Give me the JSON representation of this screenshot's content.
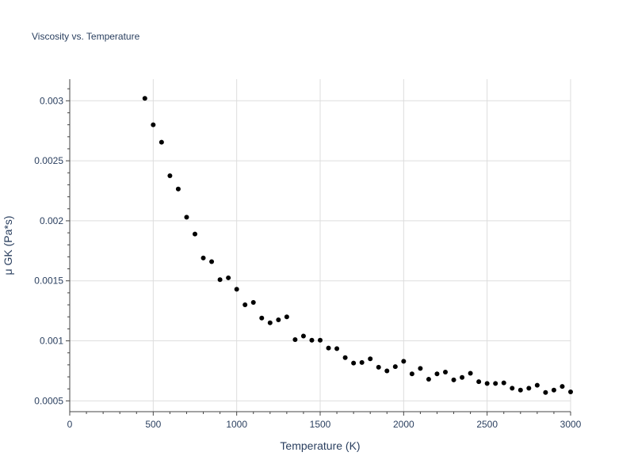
{
  "chart_data": {
    "type": "scatter",
    "title": "Viscosity vs. Temperature",
    "xlabel": "Temperature (K)",
    "ylabel": "μ GK (Pa*s)",
    "xlim": [
      0,
      3000
    ],
    "ylim": [
      0.00041,
      0.00318
    ],
    "x_ticks": [
      0,
      500,
      1000,
      1500,
      2000,
      2500,
      3000
    ],
    "x_tick_labels": [
      "0",
      "500",
      "1000",
      "1500",
      "2000",
      "2500",
      "3000"
    ],
    "y_ticks": [
      0.0005,
      0.001,
      0.0015,
      0.002,
      0.0025,
      0.003
    ],
    "y_tick_labels": [
      "0.0005",
      "0.001",
      "0.0015",
      "0.002",
      "0.0025",
      "0.003"
    ],
    "grid": true,
    "marker_color": "#000000",
    "series": [
      {
        "name": "μ GK",
        "x": [
          450,
          500,
          550,
          600,
          650,
          700,
          750,
          800,
          850,
          900,
          950,
          1000,
          1050,
          1100,
          1150,
          1200,
          1250,
          1300,
          1350,
          1400,
          1450,
          1500,
          1550,
          1600,
          1650,
          1700,
          1750,
          1800,
          1850,
          1900,
          1950,
          2000,
          2050,
          2100,
          2150,
          2200,
          2250,
          2300,
          2350,
          2400,
          2450,
          2500,
          2550,
          2600,
          2650,
          2700,
          2750,
          2800,
          2850,
          2900,
          2950,
          3000
        ],
        "y": [
          0.00302,
          0.0028,
          0.002655,
          0.002375,
          0.002265,
          0.00203,
          0.00189,
          0.00169,
          0.00166,
          0.00151,
          0.001525,
          0.00143,
          0.0013,
          0.00132,
          0.00119,
          0.00115,
          0.001175,
          0.0012,
          0.00101,
          0.00104,
          0.001005,
          0.001005,
          0.00094,
          0.000935,
          0.00086,
          0.000815,
          0.00082,
          0.00085,
          0.00078,
          0.00075,
          0.000785,
          0.00083,
          0.000725,
          0.00077,
          0.00068,
          0.000725,
          0.00074,
          0.000675,
          0.000695,
          0.00073,
          0.00066,
          0.000645,
          0.000645,
          0.00065,
          0.000605,
          0.00059,
          0.000605,
          0.00063,
          0.00057,
          0.00059,
          0.00062,
          0.000575
        ]
      }
    ]
  }
}
